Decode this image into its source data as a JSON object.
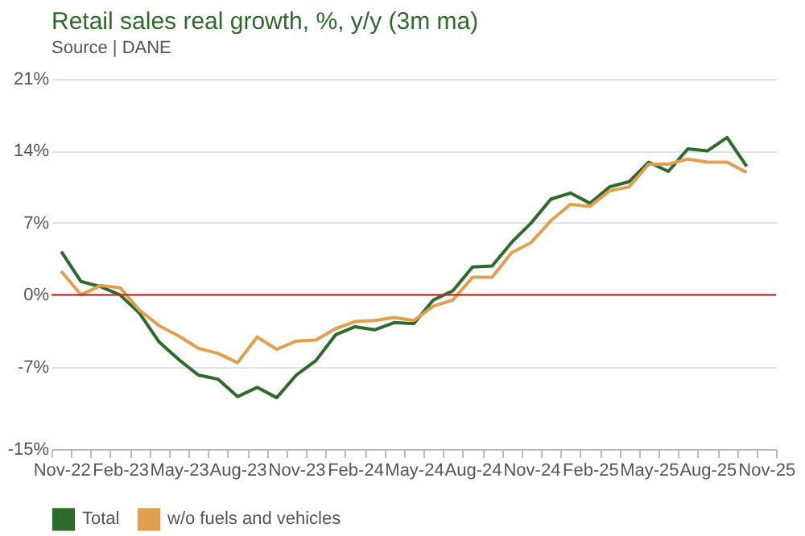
{
  "chart_data": {
    "type": "line",
    "title": "Retail sales real growth, %, y/y (3m ma)",
    "annotations": [
      "Source | DANE"
    ],
    "categories": [
      "Nov-22",
      null,
      null,
      "Feb-23",
      null,
      null,
      "May-23",
      null,
      null,
      "Aug-23",
      null,
      null,
      "Nov-23",
      null,
      null,
      "Feb-24",
      null,
      null,
      "May-24",
      null,
      null,
      "Aug-24",
      null,
      null,
      "Nov-24",
      null,
      null,
      "Feb-25",
      null,
      null,
      "May-25",
      null,
      null,
      "Aug-25",
      null,
      null,
      "Nov-25"
    ],
    "series": [
      {
        "name": "Total",
        "color": "#2e6b2a",
        "values": [
          4.2,
          1.3,
          0.8,
          0,
          -1.8,
          -4.6,
          -6.3,
          -7.8,
          -8.2,
          -9.9,
          -9.0,
          -10.0,
          -7.8,
          -6.4,
          -3.9,
          -3.1,
          -3.4,
          -2.7,
          -2.8,
          -0.5,
          0.4,
          2.7,
          2.8,
          5.1,
          7.0,
          9.3,
          9.9,
          8.9,
          10.5,
          11.0,
          12.9,
          12.0,
          14.2,
          14.0,
          15.3,
          12.5,
          null
        ]
      },
      {
        "name": "w/o fuels and vehicles",
        "color": "#e0a050",
        "values": [
          2.3,
          0,
          0.9,
          0.7,
          -1.5,
          -3.0,
          -4.0,
          -5.2,
          -5.7,
          -6.6,
          -4.1,
          -5.3,
          -4.5,
          -4.4,
          -3.3,
          -2.6,
          -2.5,
          -2.2,
          -2.5,
          -1.1,
          -0.5,
          1.7,
          1.7,
          4.1,
          5.1,
          7.2,
          8.8,
          8.6,
          10.1,
          10.5,
          12.7,
          12.7,
          13.2,
          12.9,
          12.9,
          11.9,
          null
        ]
      }
    ],
    "ylim": [
      -15,
      21
    ],
    "yticks": [
      {
        "value": -15,
        "label": "-15%"
      },
      {
        "value": -7,
        "label": "-7%"
      },
      {
        "value": 0,
        "label": "0%"
      },
      {
        "value": 7,
        "label": "7%"
      },
      {
        "value": 14,
        "label": "14%"
      },
      {
        "value": 21,
        "label": "21%"
      }
    ],
    "ref_lines": [
      {
        "axis": "y",
        "value": 0,
        "color": "#c0302c"
      }
    ],
    "grid": "y",
    "legend": "bottom"
  }
}
